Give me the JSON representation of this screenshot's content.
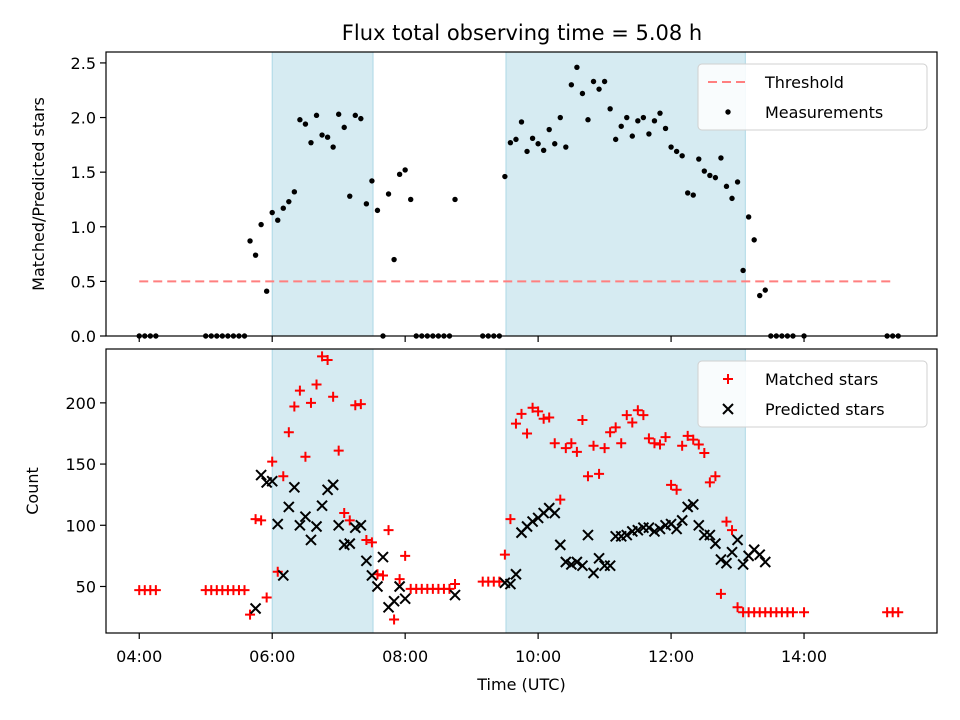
{
  "title": "Flux total observing time = 5.08 h",
  "chart_data": [
    {
      "type": "scatter",
      "ylabel": "Matched/Predicted stars",
      "xlim": [
        "03:30",
        "16:00"
      ],
      "ylim": [
        0,
        2.6
      ],
      "yticks": [
        "0.0",
        "0.5",
        "1.0",
        "1.5",
        "2.0",
        "2.5"
      ],
      "shaded_intervals": [
        [
          "06:00",
          "07:31"
        ],
        [
          "09:31",
          "13:07"
        ]
      ],
      "legend_position": "top-right",
      "series": [
        {
          "name": "Threshold",
          "style": "dashed-line",
          "color": "#ff7f7f",
          "x": [
            "04:00",
            "15:20"
          ],
          "y": [
            0.5,
            0.5
          ]
        },
        {
          "name": "Measurements",
          "style": "dot",
          "color": "#000000",
          "x": [
            "04:00",
            "04:05",
            "04:10",
            "04:15",
            "05:00",
            "05:05",
            "05:10",
            "05:15",
            "05:20",
            "05:25",
            "05:30",
            "05:35",
            "05:40",
            "05:45",
            "05:50",
            "05:55",
            "06:00",
            "06:05",
            "06:10",
            "06:15",
            "06:20",
            "06:25",
            "06:30",
            "06:35",
            "06:40",
            "06:45",
            "06:50",
            "06:55",
            "07:00",
            "07:05",
            "07:10",
            "07:15",
            "07:20",
            "07:25",
            "07:30",
            "07:35",
            "07:40",
            "07:45",
            "07:50",
            "07:55",
            "08:00",
            "08:05",
            "08:10",
            "08:15",
            "08:20",
            "08:25",
            "08:30",
            "08:35",
            "08:40",
            "08:45",
            "09:10",
            "09:15",
            "09:20",
            "09:25",
            "09:30",
            "09:35",
            "09:40",
            "09:45",
            "09:50",
            "09:55",
            "10:00",
            "10:05",
            "10:10",
            "10:15",
            "10:20",
            "10:25",
            "10:30",
            "10:35",
            "10:40",
            "10:45",
            "10:50",
            "10:55",
            "11:00",
            "11:05",
            "11:10",
            "11:15",
            "11:20",
            "11:25",
            "11:30",
            "11:35",
            "11:40",
            "11:45",
            "11:50",
            "11:55",
            "12:00",
            "12:05",
            "12:10",
            "12:15",
            "12:20",
            "12:25",
            "12:30",
            "12:35",
            "12:40",
            "12:45",
            "12:50",
            "12:55",
            "13:00",
            "13:05",
            "13:10",
            "13:15",
            "13:20",
            "13:25",
            "13:30",
            "13:35",
            "13:40",
            "13:45",
            "13:50",
            "14:00",
            "15:15",
            "15:20",
            "15:25"
          ],
          "y": [
            0,
            0,
            0,
            0,
            0,
            0,
            0,
            0,
            0,
            0,
            0,
            0,
            0.87,
            0.74,
            1.02,
            0.41,
            1.13,
            1.06,
            1.17,
            1.23,
            1.32,
            1.98,
            1.94,
            1.77,
            2.02,
            1.84,
            1.82,
            1.73,
            2.03,
            1.91,
            1.28,
            2.02,
            1.99,
            1.21,
            1.42,
            1.15,
            0,
            1.3,
            0.7,
            1.48,
            1.52,
            1.25,
            0,
            0,
            0,
            0,
            0,
            0,
            0,
            1.25,
            0,
            0,
            0,
            0,
            1.46,
            1.77,
            1.8,
            1.96,
            1.69,
            1.81,
            1.76,
            1.7,
            1.89,
            1.76,
            2.0,
            1.73,
            2.3,
            2.46,
            2.22,
            1.98,
            2.33,
            2.26,
            2.33,
            2.08,
            1.8,
            1.92,
            2.0,
            1.83,
            1.97,
            2.0,
            1.85,
            1.97,
            2.04,
            1.9,
            1.73,
            1.69,
            1.65,
            1.31,
            1.29,
            1.62,
            1.51,
            1.47,
            1.45,
            1.63,
            1.37,
            1.26,
            1.41,
            0.6,
            1.09,
            0.88,
            0.37,
            0.42,
            0,
            0,
            0,
            0,
            0,
            0,
            0,
            0,
            0
          ]
        }
      ]
    },
    {
      "type": "scatter",
      "xlabel": "Time (UTC)",
      "ylabel": "Count",
      "xlim": [
        "03:30",
        "16:00"
      ],
      "ylim": [
        12,
        244
      ],
      "xticks": [
        "04:00",
        "06:00",
        "08:00",
        "10:00",
        "12:00",
        "14:00"
      ],
      "yticks": [
        "50",
        "100",
        "150",
        "200"
      ],
      "shaded_intervals": [
        [
          "06:00",
          "07:31"
        ],
        [
          "09:31",
          "13:07"
        ]
      ],
      "legend_position": "top-right",
      "series": [
        {
          "name": "Matched stars",
          "style": "plus",
          "color": "#ff0000",
          "x": [
            "04:00",
            "04:05",
            "04:10",
            "04:15",
            "05:00",
            "05:05",
            "05:10",
            "05:15",
            "05:20",
            "05:25",
            "05:30",
            "05:35",
            "05:40",
            "05:45",
            "05:50",
            "05:55",
            "06:00",
            "06:05",
            "06:10",
            "06:15",
            "06:20",
            "06:25",
            "06:30",
            "06:35",
            "06:40",
            "06:45",
            "06:50",
            "06:55",
            "07:00",
            "07:05",
            "07:10",
            "07:15",
            "07:20",
            "07:25",
            "07:30",
            "07:35",
            "07:40",
            "07:45",
            "07:50",
            "07:55",
            "08:00",
            "08:05",
            "08:10",
            "08:15",
            "08:20",
            "08:25",
            "08:30",
            "08:35",
            "08:40",
            "08:45",
            "09:10",
            "09:15",
            "09:20",
            "09:25",
            "09:30",
            "09:35",
            "09:40",
            "09:45",
            "09:50",
            "09:55",
            "10:00",
            "10:05",
            "10:10",
            "10:15",
            "10:20",
            "10:25",
            "10:30",
            "10:35",
            "10:40",
            "10:45",
            "10:50",
            "10:55",
            "11:00",
            "11:05",
            "11:10",
            "11:15",
            "11:20",
            "11:25",
            "11:30",
            "11:35",
            "11:40",
            "11:45",
            "11:50",
            "11:55",
            "12:00",
            "12:05",
            "12:10",
            "12:15",
            "12:20",
            "12:25",
            "12:30",
            "12:35",
            "12:40",
            "12:45",
            "12:50",
            "12:55",
            "13:00",
            "13:05",
            "13:10",
            "13:15",
            "13:20",
            "13:25",
            "13:30",
            "13:35",
            "13:40",
            "13:45",
            "13:50",
            "14:00",
            "15:15",
            "15:20",
            "15:25"
          ],
          "y": [
            47,
            47,
            47,
            47,
            47,
            47,
            47,
            47,
            47,
            47,
            47,
            47,
            27,
            105,
            104,
            41,
            152,
            62,
            140,
            176,
            197,
            210,
            156,
            200,
            215,
            238,
            235,
            205,
            161,
            110,
            104,
            198,
            199,
            88,
            86,
            60,
            59,
            96,
            23,
            56,
            75,
            48,
            48,
            48,
            48,
            48,
            48,
            48,
            48,
            52,
            54,
            54,
            54,
            54,
            76,
            105,
            183,
            191,
            175,
            196,
            193,
            187,
            188,
            167,
            121,
            163,
            167,
            160,
            186,
            140,
            165,
            142,
            163,
            176,
            180,
            167,
            190,
            184,
            194,
            190,
            171,
            167,
            166,
            172,
            133,
            129,
            165,
            173,
            170,
            166,
            159,
            135,
            140,
            44,
            103,
            96,
            33,
            29,
            29,
            29,
            29,
            29,
            29,
            29,
            29,
            29,
            29,
            29,
            29,
            29,
            29
          ],
          "x_note": ""
        },
        {
          "name": "Predicted stars",
          "style": "cross",
          "color": "#000000",
          "x": [
            "05:45",
            "05:50",
            "05:55",
            "06:00",
            "06:05",
            "06:10",
            "06:15",
            "06:20",
            "06:25",
            "06:30",
            "06:35",
            "06:40",
            "06:45",
            "06:50",
            "06:55",
            "07:00",
            "07:05",
            "07:10",
            "07:15",
            "07:20",
            "07:25",
            "07:30",
            "07:35",
            "07:40",
            "07:45",
            "07:50",
            "07:55",
            "08:00",
            "08:45",
            "09:30",
            "09:35",
            "09:40",
            "09:45",
            "09:50",
            "09:55",
            "10:00",
            "10:05",
            "10:10",
            "10:15",
            "10:20",
            "10:25",
            "10:30",
            "10:35",
            "10:40",
            "10:45",
            "10:50",
            "10:55",
            "11:00",
            "11:05",
            "11:10",
            "11:15",
            "11:20",
            "11:25",
            "11:30",
            "11:35",
            "11:40",
            "11:45",
            "11:50",
            "11:55",
            "12:00",
            "12:05",
            "12:10",
            "12:15",
            "12:20",
            "12:25",
            "12:30",
            "12:35",
            "12:40",
            "12:45",
            "12:50",
            "12:55",
            "13:00",
            "13:05",
            "13:10",
            "13:15",
            "13:20",
            "13:25"
          ],
          "y": [
            32,
            141,
            135,
            136,
            101,
            59,
            115,
            131,
            100,
            107,
            88,
            99,
            116,
            129,
            133,
            100,
            84,
            85,
            98,
            100,
            71,
            59,
            50,
            74,
            33,
            38,
            50,
            40,
            43,
            53,
            52,
            60,
            94,
            99,
            103,
            106,
            110,
            114,
            110,
            84,
            70,
            68,
            70,
            67,
            92,
            61,
            73,
            67,
            67,
            91,
            91,
            92,
            95,
            96,
            98,
            98,
            95,
            97,
            100,
            101,
            97,
            104,
            115,
            117,
            100,
            92,
            92,
            85,
            72,
            69,
            78,
            88,
            68,
            75,
            80,
            76,
            70
          ],
          "x_note": ""
        }
      ]
    }
  ]
}
